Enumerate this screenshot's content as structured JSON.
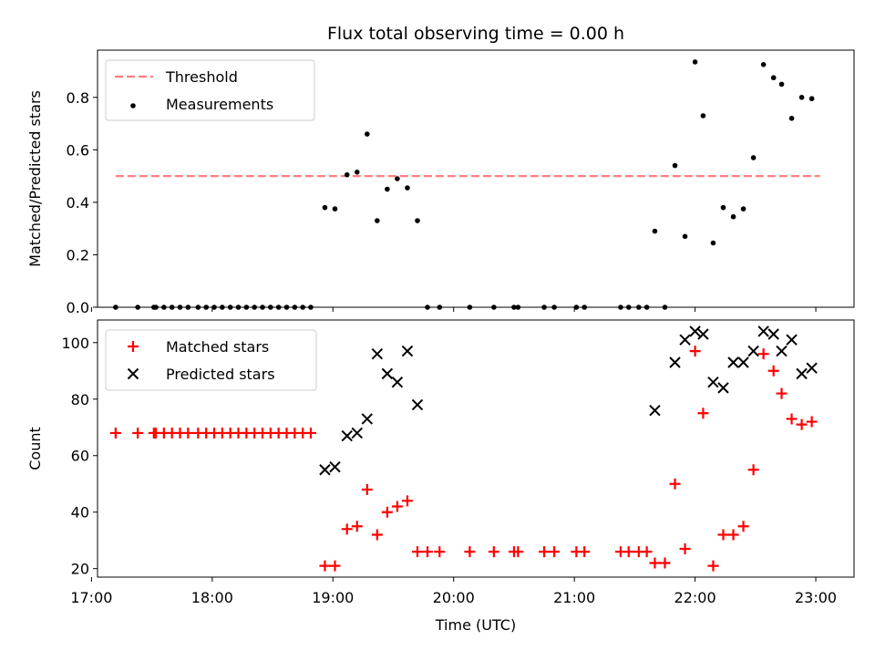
{
  "title": "Flux total observing time = 0.00 h",
  "chart_data": [
    {
      "type": "scatter",
      "ylabel": "Matched/Predicted stars",
      "xlabel": "",
      "xlim": [
        "17:03",
        "23:19"
      ],
      "ylim": [
        0,
        0.98
      ],
      "yticks": [
        0.0,
        0.2,
        0.4,
        0.6,
        0.8
      ],
      "ytick_labels": [
        "0.0",
        "0.2",
        "0.4",
        "0.6",
        "0.8"
      ],
      "legend_position": "upper left",
      "series": [
        {
          "name": "Threshold",
          "kind": "dashed-line",
          "color": "#ff7f7f",
          "points": [
            {
              "x": "17:12",
              "y": 0.5
            },
            {
              "x": "23:02",
              "y": 0.5
            }
          ]
        },
        {
          "name": "Measurements",
          "kind": "dots",
          "color": "#000000",
          "points": [
            {
              "x": "17:12",
              "y": 0
            },
            {
              "x": "17:23",
              "y": 0
            },
            {
              "x": "17:31",
              "y": 0
            },
            {
              "x": "17:32",
              "y": 0
            },
            {
              "x": "17:36",
              "y": 0
            },
            {
              "x": "17:40",
              "y": 0
            },
            {
              "x": "17:44",
              "y": 0
            },
            {
              "x": "17:48",
              "y": 0
            },
            {
              "x": "17:53",
              "y": 0
            },
            {
              "x": "17:57",
              "y": 0
            },
            {
              "x": "18:01",
              "y": 0
            },
            {
              "x": "18:05",
              "y": 0
            },
            {
              "x": "18:09",
              "y": 0
            },
            {
              "x": "18:13",
              "y": 0
            },
            {
              "x": "18:17",
              "y": 0
            },
            {
              "x": "18:21",
              "y": 0
            },
            {
              "x": "18:25",
              "y": 0
            },
            {
              "x": "18:29",
              "y": 0
            },
            {
              "x": "18:33",
              "y": 0
            },
            {
              "x": "18:37",
              "y": 0
            },
            {
              "x": "18:41",
              "y": 0
            },
            {
              "x": "18:45",
              "y": 0
            },
            {
              "x": "18:49",
              "y": 0
            },
            {
              "x": "18:56",
              "y": 0.38
            },
            {
              "x": "19:01",
              "y": 0.375
            },
            {
              "x": "19:07",
              "y": 0.505
            },
            {
              "x": "19:12",
              "y": 0.515
            },
            {
              "x": "19:17",
              "y": 0.66
            },
            {
              "x": "19:22",
              "y": 0.33
            },
            {
              "x": "19:27",
              "y": 0.45
            },
            {
              "x": "19:32",
              "y": 0.49
            },
            {
              "x": "19:37",
              "y": 0.455
            },
            {
              "x": "19:42",
              "y": 0.33
            },
            {
              "x": "19:47",
              "y": 0
            },
            {
              "x": "19:53",
              "y": 0
            },
            {
              "x": "20:08",
              "y": 0
            },
            {
              "x": "20:20",
              "y": 0
            },
            {
              "x": "20:30",
              "y": 0
            },
            {
              "x": "20:32",
              "y": 0
            },
            {
              "x": "20:45",
              "y": 0
            },
            {
              "x": "20:50",
              "y": 0
            },
            {
              "x": "21:01",
              "y": 0
            },
            {
              "x": "21:05",
              "y": 0
            },
            {
              "x": "21:23",
              "y": 0
            },
            {
              "x": "21:27",
              "y": 0
            },
            {
              "x": "21:32",
              "y": 0
            },
            {
              "x": "21:36",
              "y": 0
            },
            {
              "x": "21:40",
              "y": 0.29
            },
            {
              "x": "21:45",
              "y": 0
            },
            {
              "x": "21:50",
              "y": 0.54
            },
            {
              "x": "21:55",
              "y": 0.27
            },
            {
              "x": "22:00",
              "y": 0.935
            },
            {
              "x": "22:04",
              "y": 0.73
            },
            {
              "x": "22:09",
              "y": 0.245
            },
            {
              "x": "22:14",
              "y": 0.38
            },
            {
              "x": "22:19",
              "y": 0.345
            },
            {
              "x": "22:24",
              "y": 0.375
            },
            {
              "x": "22:29",
              "y": 0.57
            },
            {
              "x": "22:34",
              "y": 0.925
            },
            {
              "x": "22:39",
              "y": 0.875
            },
            {
              "x": "22:43",
              "y": 0.85
            },
            {
              "x": "22:48",
              "y": 0.72
            },
            {
              "x": "22:53",
              "y": 0.8
            },
            {
              "x": "22:58",
              "y": 0.795
            }
          ]
        }
      ]
    },
    {
      "type": "scatter",
      "ylabel": "Count",
      "xlabel": "Time (UTC)",
      "xlim": [
        "17:03",
        "23:19"
      ],
      "ylim": [
        17,
        108
      ],
      "yticks": [
        20,
        40,
        60,
        80,
        100
      ],
      "ytick_labels": [
        "20",
        "40",
        "60",
        "80",
        "100"
      ],
      "xticks": [
        "17:00",
        "18:00",
        "19:00",
        "20:00",
        "21:00",
        "22:00",
        "23:00"
      ],
      "xtick_labels": [
        "17:00",
        "18:00",
        "19:00",
        "20:00",
        "21:00",
        "22:00",
        "23:00"
      ],
      "legend_position": "upper left",
      "series": [
        {
          "name": "Matched stars",
          "kind": "plus",
          "color": "#ff0000",
          "points": [
            {
              "x": "17:12",
              "y": 68
            },
            {
              "x": "17:23",
              "y": 68
            },
            {
              "x": "17:31",
              "y": 68
            },
            {
              "x": "17:32",
              "y": 68
            },
            {
              "x": "17:36",
              "y": 68
            },
            {
              "x": "17:40",
              "y": 68
            },
            {
              "x": "17:44",
              "y": 68
            },
            {
              "x": "17:48",
              "y": 68
            },
            {
              "x": "17:53",
              "y": 68
            },
            {
              "x": "17:57",
              "y": 68
            },
            {
              "x": "18:01",
              "y": 68
            },
            {
              "x": "18:05",
              "y": 68
            },
            {
              "x": "18:09",
              "y": 68
            },
            {
              "x": "18:13",
              "y": 68
            },
            {
              "x": "18:17",
              "y": 68
            },
            {
              "x": "18:21",
              "y": 68
            },
            {
              "x": "18:25",
              "y": 68
            },
            {
              "x": "18:29",
              "y": 68
            },
            {
              "x": "18:33",
              "y": 68
            },
            {
              "x": "18:37",
              "y": 68
            },
            {
              "x": "18:41",
              "y": 68
            },
            {
              "x": "18:45",
              "y": 68
            },
            {
              "x": "18:49",
              "y": 68
            },
            {
              "x": "18:56",
              "y": 21
            },
            {
              "x": "19:01",
              "y": 21
            },
            {
              "x": "19:07",
              "y": 34
            },
            {
              "x": "19:12",
              "y": 35
            },
            {
              "x": "19:17",
              "y": 48
            },
            {
              "x": "19:22",
              "y": 32
            },
            {
              "x": "19:27",
              "y": 40
            },
            {
              "x": "19:32",
              "y": 42
            },
            {
              "x": "19:37",
              "y": 44
            },
            {
              "x": "19:42",
              "y": 26
            },
            {
              "x": "19:47",
              "y": 26
            },
            {
              "x": "19:53",
              "y": 26
            },
            {
              "x": "20:08",
              "y": 26
            },
            {
              "x": "20:20",
              "y": 26
            },
            {
              "x": "20:30",
              "y": 26
            },
            {
              "x": "20:32",
              "y": 26
            },
            {
              "x": "20:45",
              "y": 26
            },
            {
              "x": "20:50",
              "y": 26
            },
            {
              "x": "21:01",
              "y": 26
            },
            {
              "x": "21:05",
              "y": 26
            },
            {
              "x": "21:23",
              "y": 26
            },
            {
              "x": "21:27",
              "y": 26
            },
            {
              "x": "21:32",
              "y": 26
            },
            {
              "x": "21:36",
              "y": 26
            },
            {
              "x": "21:40",
              "y": 22
            },
            {
              "x": "21:45",
              "y": 22
            },
            {
              "x": "21:50",
              "y": 50
            },
            {
              "x": "21:55",
              "y": 27
            },
            {
              "x": "22:00",
              "y": 97
            },
            {
              "x": "22:04",
              "y": 75
            },
            {
              "x": "22:09",
              "y": 21
            },
            {
              "x": "22:14",
              "y": 32
            },
            {
              "x": "22:19",
              "y": 32
            },
            {
              "x": "22:24",
              "y": 35
            },
            {
              "x": "22:29",
              "y": 55
            },
            {
              "x": "22:34",
              "y": 96
            },
            {
              "x": "22:39",
              "y": 90
            },
            {
              "x": "22:43",
              "y": 82
            },
            {
              "x": "22:48",
              "y": 73
            },
            {
              "x": "22:53",
              "y": 71
            },
            {
              "x": "22:58",
              "y": 72
            }
          ]
        },
        {
          "name": "Predicted stars",
          "kind": "cross",
          "color": "#000000",
          "points": [
            {
              "x": "18:56",
              "y": 55
            },
            {
              "x": "19:01",
              "y": 56
            },
            {
              "x": "19:07",
              "y": 67
            },
            {
              "x": "19:12",
              "y": 68
            },
            {
              "x": "19:17",
              "y": 73
            },
            {
              "x": "19:22",
              "y": 96
            },
            {
              "x": "19:27",
              "y": 89
            },
            {
              "x": "19:32",
              "y": 86
            },
            {
              "x": "19:37",
              "y": 97
            },
            {
              "x": "19:42",
              "y": 78
            },
            {
              "x": "21:40",
              "y": 76
            },
            {
              "x": "21:50",
              "y": 93
            },
            {
              "x": "21:55",
              "y": 101
            },
            {
              "x": "22:00",
              "y": 104
            },
            {
              "x": "22:04",
              "y": 103
            },
            {
              "x": "22:09",
              "y": 86
            },
            {
              "x": "22:14",
              "y": 84
            },
            {
              "x": "22:19",
              "y": 93
            },
            {
              "x": "22:24",
              "y": 93
            },
            {
              "x": "22:29",
              "y": 97
            },
            {
              "x": "22:34",
              "y": 104
            },
            {
              "x": "22:39",
              "y": 103
            },
            {
              "x": "22:43",
              "y": 97
            },
            {
              "x": "22:48",
              "y": 101
            },
            {
              "x": "22:53",
              "y": 89
            },
            {
              "x": "22:58",
              "y": 91
            }
          ]
        }
      ]
    }
  ]
}
